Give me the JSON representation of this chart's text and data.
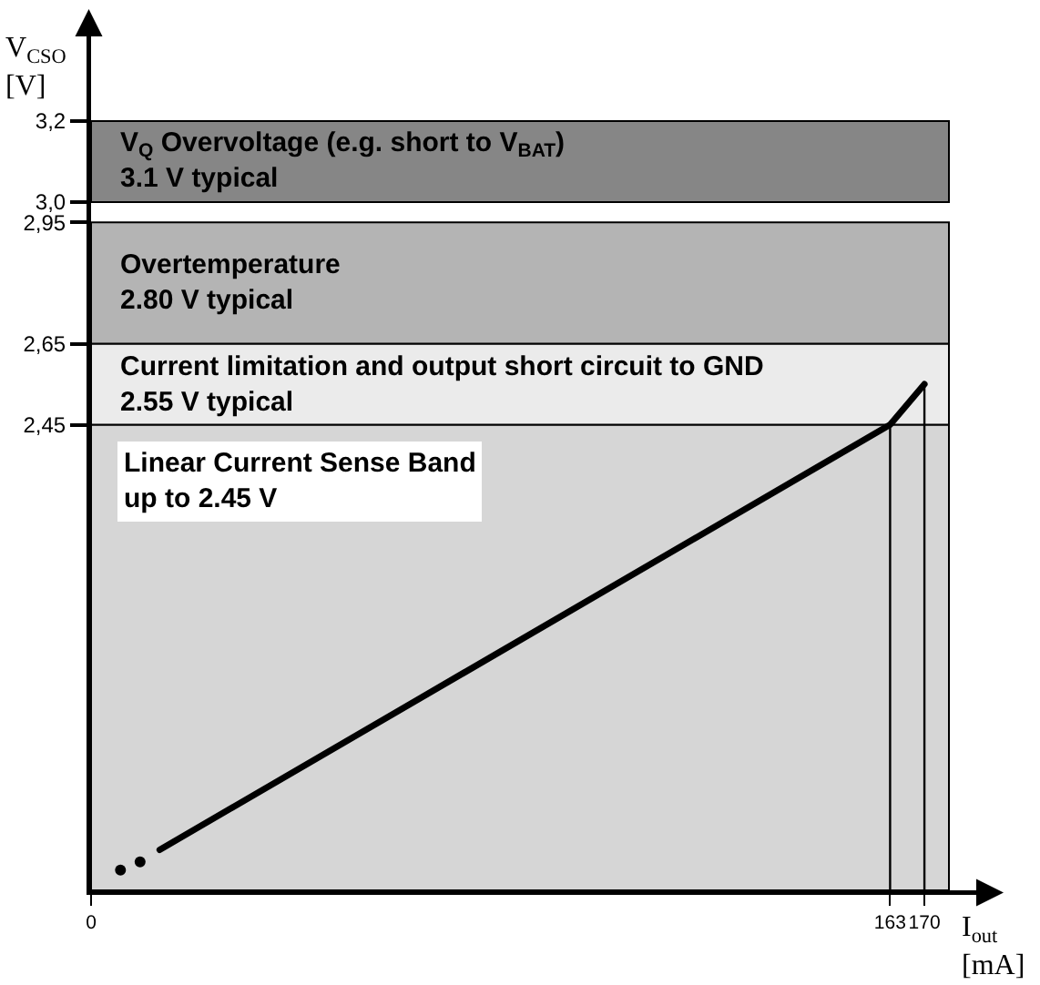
{
  "chart_data": {
    "type": "line",
    "xlabel": "I$_{out}$\n[mA]",
    "ylabel": "V$_{CSO}$\n[V]",
    "series": [
      {
        "type": "scatter",
        "color": "#000000",
        "marker": "circle",
        "x": [
          6,
          10
        ],
        "values": [
          1.35,
          1.37
        ]
      },
      {
        "color": "#000000",
        "x": [
          14,
          163,
          170
        ],
        "values": [
          1.4,
          2.45,
          2.55
        ]
      }
    ],
    "xlim": [
      0,
      175
    ],
    "xticks": [
      0,
      163,
      170
    ],
    "ylim": [
      1.3,
      3.4
    ],
    "yticks": [
      {
        "value": 2.45,
        "label": "2,45"
      },
      {
        "value": 2.65,
        "label": "2,65"
      },
      {
        "value": 2.95,
        "label": "2,95"
      },
      {
        "value": 3,
        "label": "3,0"
      },
      {
        "value": 3.2,
        "label": "3,2"
      }
    ],
    "bands": [
      {
        "axis": "y",
        "from": 1.3,
        "to": 2.45,
        "color": "#d6d6d6",
        "label": "Linear Current Sense Band\nup to 2.45 V"
      },
      {
        "axis": "y",
        "from": 2.45,
        "to": 2.65,
        "color": "#ebebeb",
        "label": "Current limitation and output short circuit to GND\n2.55 V typical"
      },
      {
        "axis": "y",
        "from": 2.65,
        "to": 2.95,
        "color": "#b4b4b4",
        "label": "Overtemperature\n2.80 V typical"
      },
      {
        "axis": "y",
        "from": 3,
        "to": 3.2,
        "color": "#868686",
        "label": "V$_{Q}$ Overvoltage (e.g. short to V$_{BAT}$)\n3.1 V typical"
      }
    ],
    "ref_lines": [
      {
        "axis": "x",
        "value": 163,
        "color": "#000000"
      },
      {
        "axis": "x",
        "value": 170,
        "color": "#000000"
      }
    ]
  }
}
